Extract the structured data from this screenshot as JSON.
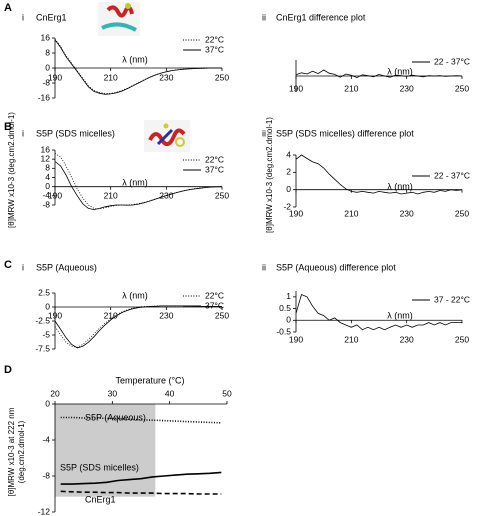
{
  "chart_data": [
    {
      "type": "line",
      "panel": "A",
      "label": "i",
      "title": "CnErg1",
      "x_label": "λ (nm)",
      "x": [
        190,
        192,
        194,
        196,
        198,
        200,
        202,
        204,
        206,
        208,
        210,
        212,
        214,
        216,
        218,
        220,
        222,
        224,
        226,
        228,
        230,
        232,
        234,
        236,
        238,
        240,
        242,
        244,
        246,
        248,
        250
      ],
      "xlim": [
        190,
        250
      ],
      "xticks": [
        190,
        210,
        230,
        250
      ],
      "ylim": [
        -16,
        16
      ],
      "yticks": [
        16,
        8,
        0,
        -8,
        -16
      ],
      "series": [
        {
          "name": "22°C",
          "color": "#000000",
          "style": "dotted",
          "values": [
            15.5,
            11.5,
            6.5,
            2.5,
            -1.5,
            -5.5,
            -9.5,
            -12,
            -13,
            -13.6,
            -13.5,
            -13,
            -12,
            -10.8,
            -9.3,
            -7.8,
            -6.3,
            -4.9,
            -3.7,
            -2.7,
            -1.9,
            -1.3,
            -0.9,
            -0.6,
            -0.4,
            -0.3,
            -0.2,
            -0.1,
            0,
            0,
            0
          ]
        },
        {
          "name": "37°C",
          "color": "#000000",
          "style": "solid",
          "values": [
            15,
            11,
            6,
            2,
            -2,
            -6,
            -10,
            -12.5,
            -13.5,
            -14,
            -13.8,
            -13.2,
            -12.3,
            -11,
            -9.5,
            -8,
            -6.5,
            -5,
            -3.8,
            -2.8,
            -2,
            -1.4,
            -1,
            -0.7,
            -0.5,
            -0.3,
            -0.2,
            -0.1,
            0,
            0,
            0
          ]
        }
      ]
    },
    {
      "type": "line",
      "label": "ii",
      "title": "CnErg1 difference plot",
      "x_label": "λ (nm)",
      "x": [
        190,
        192,
        194,
        196,
        198,
        200,
        202,
        204,
        206,
        208,
        210,
        212,
        214,
        216,
        218,
        220,
        222,
        224,
        226,
        228,
        230,
        232,
        234,
        236,
        238,
        240,
        242,
        244,
        246,
        248,
        250
      ],
      "xlim": [
        190,
        250
      ],
      "xticks": [
        190,
        210,
        230,
        250
      ],
      "ylim": [
        -4,
        4
      ],
      "series": [
        {
          "name": "22 - 37°C",
          "color": "#000000",
          "style": "solid",
          "values": [
            0.3,
            0.8,
            0.5,
            1.2,
            0.6,
            1.5,
            0.7,
            0.4,
            -0.3,
            0.5,
            0.2,
            -0.4,
            0.3,
            0.1,
            -0.2,
            0.4,
            0,
            -0.3,
            0.2,
            0.1,
            -0.1,
            0.2,
            0,
            -0.2,
            0.1,
            0,
            0.1,
            -0.1,
            0,
            0.1,
            0
          ]
        }
      ]
    },
    {
      "type": "line",
      "panel": "B",
      "label": "i",
      "title": "S5P (SDS micelles)",
      "x_label": "λ (nm)",
      "y_label": "[θ]MRW x10-3 (deg.cm2.dmol-1)",
      "x": [
        190,
        192,
        194,
        196,
        198,
        200,
        202,
        204,
        206,
        208,
        210,
        212,
        214,
        216,
        218,
        220,
        222,
        224,
        226,
        228,
        230,
        232,
        234,
        236,
        238,
        240,
        242,
        244,
        246,
        248,
        250
      ],
      "xlim": [
        190,
        250
      ],
      "xticks": [
        190,
        210,
        230,
        250
      ],
      "ylim": [
        -8,
        16
      ],
      "yticks": [
        16,
        12,
        8,
        4,
        0,
        -4,
        -8
      ],
      "series": [
        {
          "name": "22°C",
          "color": "#000000",
          "style": "dotted",
          "values": [
            14.5,
            13,
            9,
            4,
            -1,
            -5,
            -8,
            -9.5,
            -9.7,
            -9.2,
            -8.6,
            -8.2,
            -8,
            -8,
            -7.8,
            -7.4,
            -6.9,
            -6.2,
            -5.4,
            -4.6,
            -3.8,
            -3.1,
            -2.4,
            -1.8,
            -1.3,
            -0.9,
            -0.6,
            -0.3,
            -0.1,
            0,
            0
          ]
        },
        {
          "name": "37°C",
          "color": "#000000",
          "style": "solid",
          "values": [
            11,
            9,
            5,
            0,
            -4,
            -7.5,
            -9.5,
            -10,
            -9.5,
            -8.8,
            -8.3,
            -8,
            -8,
            -8.1,
            -8,
            -7.6,
            -7,
            -6.3,
            -5.5,
            -4.7,
            -3.9,
            -3.2,
            -2.5,
            -1.9,
            -1.4,
            -1,
            -0.7,
            -0.4,
            -0.2,
            -0.1,
            0
          ]
        }
      ]
    },
    {
      "type": "line",
      "label": "ii",
      "title": "S5P (SDS micelles) difference plot",
      "x_label": "λ (nm)",
      "y_label": "[θ]MRW x10-3 (deg.cm2.dmol-1)",
      "x": [
        190,
        192,
        194,
        196,
        198,
        200,
        202,
        204,
        206,
        208,
        210,
        212,
        214,
        216,
        218,
        220,
        222,
        224,
        226,
        228,
        230,
        232,
        234,
        236,
        238,
        240,
        242,
        244,
        246,
        248,
        250
      ],
      "xlim": [
        190,
        250
      ],
      "xticks": [
        190,
        210,
        230,
        250
      ],
      "ylim": [
        -2,
        4
      ],
      "yticks": [
        4,
        2,
        0,
        -2
      ],
      "series": [
        {
          "name": "22 - 37°C",
          "color": "#000000",
          "style": "solid",
          "values": [
            3.5,
            4,
            3.6,
            3.2,
            3,
            2.5,
            1.8,
            1.2,
            0.6,
            0.1,
            -0.2,
            -0.3,
            -0.2,
            -0.3,
            -0.4,
            -0.2,
            -0.3,
            -0.4,
            -0.3,
            -0.5,
            -0.4,
            -0.3,
            -0.5,
            -0.3,
            -0.2,
            -0.3,
            -0.1,
            -0.2,
            0,
            -0.1,
            0
          ]
        }
      ]
    },
    {
      "type": "line",
      "panel": "C",
      "label": "i",
      "title": "S5P (Aqueous)",
      "x_label": "λ (nm)",
      "x": [
        190,
        192,
        194,
        196,
        198,
        200,
        202,
        204,
        206,
        208,
        210,
        212,
        214,
        216,
        218,
        220,
        222,
        224,
        226,
        228,
        230,
        232,
        234,
        236,
        238,
        240,
        242,
        244,
        246,
        248,
        250
      ],
      "xlim": [
        190,
        250
      ],
      "xticks": [
        190,
        210,
        230,
        250
      ],
      "ylim": [
        -7.5,
        2.5
      ],
      "yticks": [
        2.5,
        0,
        -2.5,
        -5,
        -7.5
      ],
      "series": [
        {
          "name": "22°C",
          "color": "#000000",
          "style": "dotted",
          "values": [
            -3.5,
            -5,
            -6.3,
            -7,
            -7.2,
            -6.7,
            -5.8,
            -4.8,
            -3.8,
            -2.9,
            -2.1,
            -1.4,
            -0.9,
            -0.5,
            -0.2,
            0,
            0.1,
            0.1,
            0.2,
            0.2,
            0.2,
            0.2,
            0.2,
            0.2,
            0.2,
            0.1,
            0.1,
            0.1,
            0.1,
            0.1,
            0.1
          ]
        },
        {
          "name": "37°C",
          "color": "#000000",
          "style": "solid",
          "values": [
            -2.5,
            -4,
            -5.5,
            -6.7,
            -7.3,
            -7,
            -6.3,
            -5.3,
            -4.2,
            -3.2,
            -2.3,
            -1.6,
            -1,
            -0.6,
            -0.3,
            -0.1,
            0,
            0.1,
            0.1,
            0.2,
            0.2,
            0.2,
            0.2,
            0.2,
            0.2,
            0.1,
            0.1,
            0.1,
            0.1,
            0.1,
            0.1
          ]
        }
      ]
    },
    {
      "type": "line",
      "label": "ii",
      "title": "S5P (Aqueous) difference plot",
      "x_label": "λ (nm)",
      "x": [
        190,
        192,
        194,
        196,
        198,
        200,
        202,
        204,
        206,
        208,
        210,
        212,
        214,
        216,
        218,
        220,
        222,
        224,
        226,
        228,
        230,
        232,
        234,
        236,
        238,
        240,
        242,
        244,
        246,
        248,
        250
      ],
      "xlim": [
        190,
        250
      ],
      "xticks": [
        190,
        210,
        230,
        250
      ],
      "ylim": [
        -0.5,
        1.25
      ],
      "yticks": [
        1,
        0.5,
        0,
        -0.5
      ],
      "series": [
        {
          "name": "37 - 22°C",
          "color": "#000000",
          "style": "solid",
          "values": [
            0.3,
            1.1,
            1.0,
            0.6,
            0.3,
            0.2,
            0,
            0.1,
            -0.1,
            -0.2,
            -0.3,
            -0.2,
            -0.4,
            -0.3,
            -0.4,
            -0.3,
            -0.4,
            -0.3,
            -0.2,
            -0.3,
            -0.2,
            -0.3,
            -0.2,
            -0.2,
            -0.1,
            -0.2,
            -0.1,
            -0.2,
            -0.1,
            -0.1,
            -0.1
          ]
        }
      ]
    },
    {
      "type": "line",
      "panel": "D",
      "x_label": "Temperature (°C)",
      "y_label": [
        "[θ]MRW x10-3 at 222 nm",
        "(deg.cm2.dmol-1)"
      ],
      "x": [
        21,
        23,
        25,
        27,
        29,
        31,
        33,
        35,
        37,
        39,
        41,
        43,
        45,
        47,
        49
      ],
      "xlim": [
        20,
        50
      ],
      "xticks": [
        20,
        30,
        40,
        50
      ],
      "ylim": [
        -12,
        0
      ],
      "yticks": [
        0,
        -4,
        -8,
        -12
      ],
      "shaded_xrange": [
        20,
        37.5
      ],
      "series": [
        {
          "name": "S5P (Aqueous)",
          "color": "#000000",
          "style": "dotted",
          "values": [
            -1.5,
            -1.5,
            -1.55,
            -1.55,
            -1.6,
            -1.6,
            -1.7,
            -1.75,
            -1.8,
            -1.85,
            -1.9,
            -1.95,
            -2.0,
            -2.05,
            -2.1
          ]
        },
        {
          "name": "S5P (SDS micelles)",
          "color": "#000000",
          "style": "solid",
          "values": [
            -8.9,
            -8.9,
            -8.85,
            -8.8,
            -8.7,
            -8.5,
            -8.4,
            -8.3,
            -8.1,
            -8,
            -7.9,
            -7.8,
            -7.75,
            -7.7,
            -7.6
          ]
        },
        {
          "name": "CnErg1",
          "color": "#000000",
          "style": "dashed",
          "values": [
            -9.7,
            -9.75,
            -9.8,
            -9.8,
            -9.85,
            -9.85,
            -9.9,
            -9.9,
            -9.9,
            -9.95,
            -9.95,
            -9.95,
            -10,
            -10,
            -10
          ]
        }
      ]
    }
  ]
}
